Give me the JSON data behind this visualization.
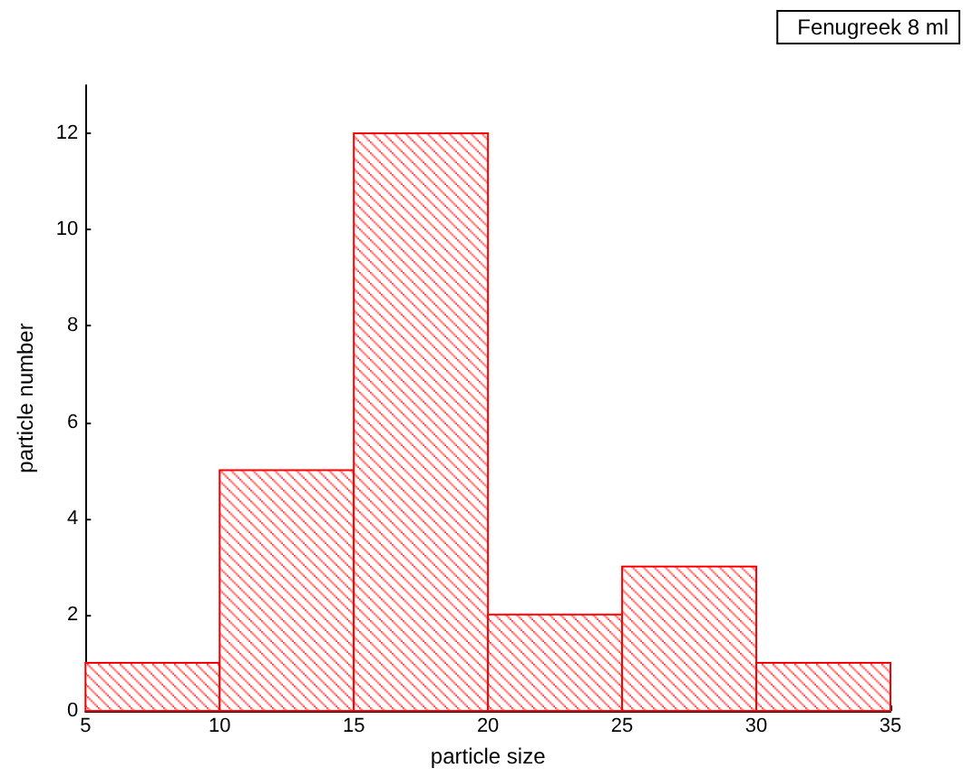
{
  "chart_data": {
    "type": "histogram",
    "xlabel": "particle size",
    "ylabel": "particle number",
    "bins": [
      5,
      10,
      15,
      20,
      25,
      30,
      35
    ],
    "series": [
      {
        "name": "Fenugreek 8 ml",
        "color": "#ff0000",
        "values": [
          1,
          5,
          12,
          2,
          3,
          1
        ]
      }
    ],
    "xlim": [
      5,
      35
    ],
    "xticks": [
      5,
      10,
      15,
      20,
      25,
      30,
      35
    ],
    "ylim": [
      0,
      13
    ],
    "yticks": [
      0,
      2,
      4,
      6,
      8,
      10,
      12
    ],
    "grid": false,
    "legend": "top right"
  }
}
